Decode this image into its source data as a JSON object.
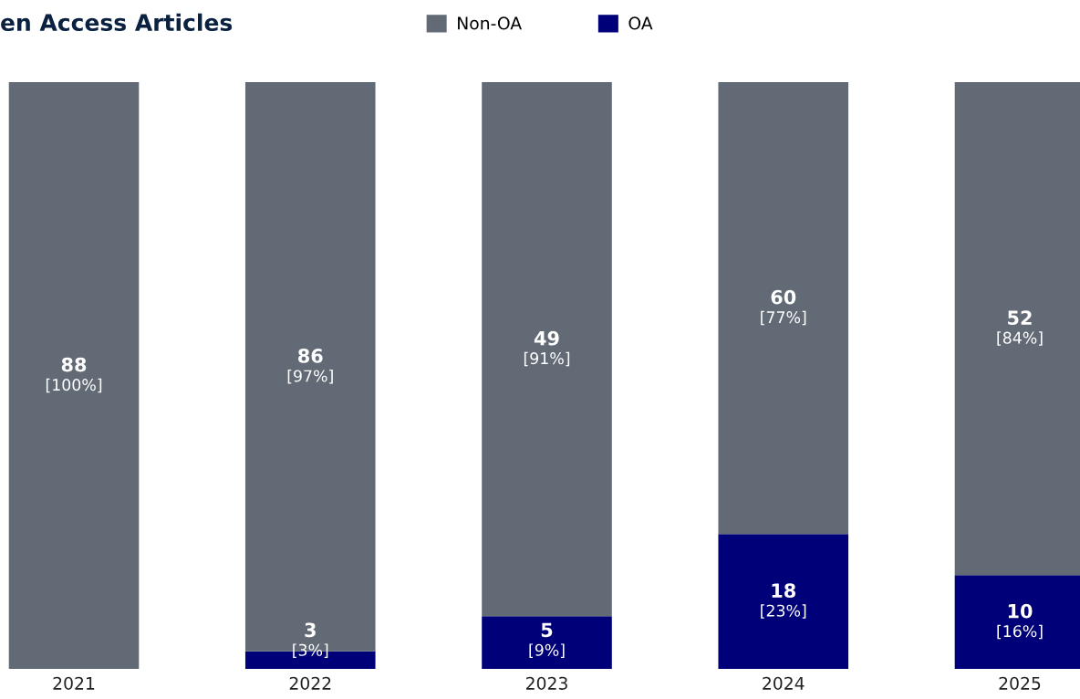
{
  "chart_data": {
    "type": "bar",
    "title": "en Access Articles",
    "stacked": true,
    "ylim": [
      0,
      100
    ],
    "tick_labels": "x",
    "legend": "top",
    "categories": [
      "2021",
      "2022",
      "2023",
      "2024",
      "2025"
    ],
    "series": [
      {
        "name": "OA",
        "color": "#000078",
        "values": [
          0,
          3,
          9,
          23,
          16
        ],
        "value_labels": [
          null,
          "3\n[3%]",
          "5\n[9%]",
          "18\n[23%]",
          "10\n[16%]"
        ]
      },
      {
        "name": "Non-OA",
        "color": "#626b75",
        "values": [
          100,
          97,
          91,
          77,
          84
        ],
        "value_labels": [
          "88\n[100%]",
          "86\n[97%]",
          "49\n[91%]",
          "60\n[77%]",
          "52\n[84%]"
        ]
      }
    ]
  }
}
